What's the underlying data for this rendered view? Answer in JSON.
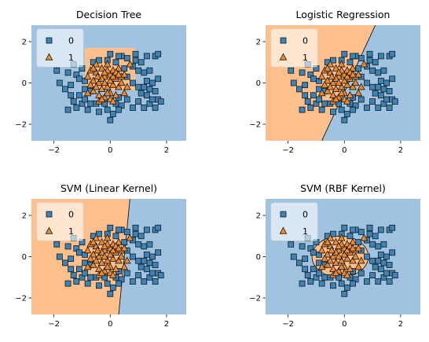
{
  "colors": {
    "class0_region": "#9fc3e0",
    "class1_region": "#fdc08c",
    "class0_marker": "#3a84b8",
    "class1_marker": "#f08a2a",
    "marker_edge": "#1a1a1a",
    "legend_bg": "#ffffff"
  },
  "chart_data": [
    {
      "type": "scatter",
      "title": "Decision Tree",
      "xlim": [
        -2.8,
        2.7
      ],
      "ylim": [
        -2.8,
        2.8
      ],
      "xticks": [
        -2,
        0,
        2
      ],
      "yticks": [
        -2,
        0,
        2
      ],
      "xtick_labels": [
        "−2",
        "0",
        "2"
      ],
      "ytick_labels": [
        "−2",
        "0",
        "2"
      ],
      "legend": {
        "placement": "upper-left",
        "entries": [
          "0",
          "1"
        ]
      },
      "boundary": {
        "kind": "box",
        "x": [
          -0.9,
          0.9
        ],
        "y": [
          -0.35,
          1.7
        ]
      }
    },
    {
      "type": "scatter",
      "title": "Logistic Regression",
      "xlim": [
        -2.8,
        2.7
      ],
      "ylim": [
        -2.8,
        2.8
      ],
      "xticks": [
        -2,
        0,
        2
      ],
      "yticks": [
        -2,
        0,
        2
      ],
      "xtick_labels": [
        "−2",
        "0",
        "2"
      ],
      "ytick_labels": [
        "−2",
        "0",
        "2"
      ],
      "legend": {
        "placement": "upper-left",
        "entries": [
          "0",
          "1"
        ]
      },
      "boundary": {
        "kind": "line",
        "p1": [
          -0.8,
          -2.8
        ],
        "p2": [
          1.1,
          2.8
        ]
      }
    },
    {
      "type": "scatter",
      "title": "SVM (Linear Kernel)",
      "xlim": [
        -2.8,
        2.7
      ],
      "ylim": [
        -2.8,
        2.8
      ],
      "xticks": [
        -2,
        0,
        2
      ],
      "yticks": [
        -2,
        0,
        2
      ],
      "xtick_labels": [
        "−2",
        "0",
        "2"
      ],
      "ytick_labels": [
        "−2",
        "0",
        "2"
      ],
      "legend": {
        "placement": "upper-left",
        "entries": [
          "0",
          "1"
        ]
      },
      "boundary": {
        "kind": "line",
        "p1": [
          0.3,
          -2.8
        ],
        "p2": [
          0.7,
          2.8
        ]
      }
    },
    {
      "type": "scatter",
      "title": "SVM (RBF Kernel)",
      "xlim": [
        -2.8,
        2.7
      ],
      "ylim": [
        -2.8,
        2.8
      ],
      "xticks": [
        -2,
        0,
        2
      ],
      "yticks": [
        -2,
        0,
        2
      ],
      "xtick_labels": [
        "−2",
        "0",
        "2"
      ],
      "ytick_labels": [
        "−2",
        "0",
        "2"
      ],
      "legend": {
        "placement": "upper-left",
        "entries": [
          "0",
          "1"
        ]
      },
      "boundary": {
        "kind": "ellipse",
        "cx": -0.15,
        "cy": 0.0,
        "rx": 1.0,
        "ry": 1.0
      }
    }
  ],
  "points": {
    "class0": [
      [
        -1.9,
        0.6
      ],
      [
        -1.8,
        0.0
      ],
      [
        -1.6,
        -0.3
      ],
      [
        -1.5,
        0.5
      ],
      [
        -1.4,
        -0.1
      ],
      [
        -1.3,
        0.9
      ],
      [
        -1.2,
        0.4
      ],
      [
        -1.1,
        0.2
      ],
      [
        -1.0,
        0.7
      ],
      [
        -1.4,
        -0.6
      ],
      [
        -1.5,
        -1.3
      ],
      [
        -1.2,
        -1.2
      ],
      [
        -1.1,
        -0.6
      ],
      [
        -1.0,
        -1.0
      ],
      [
        -0.8,
        -1.3
      ],
      [
        -1.3,
        -0.9
      ],
      [
        -0.9,
        -0.8
      ],
      [
        -0.7,
        -1.0
      ],
      [
        -0.5,
        -1.0
      ],
      [
        -0.4,
        -1.4
      ],
      [
        -0.2,
        -1.0
      ],
      [
        -0.1,
        -1.3
      ],
      [
        0.1,
        -1.5
      ],
      [
        0.2,
        -1.0
      ],
      [
        0.4,
        -1.1
      ],
      [
        0.3,
        -0.7
      ],
      [
        0.6,
        -0.8
      ],
      [
        0.8,
        -1.2
      ],
      [
        1.0,
        -0.9
      ],
      [
        1.2,
        -1.2
      ],
      [
        1.4,
        -1.0
      ],
      [
        1.5,
        -0.8
      ],
      [
        1.7,
        -0.8
      ],
      [
        1.6,
        -1.2
      ],
      [
        1.3,
        -0.6
      ],
      [
        1.1,
        -0.5
      ],
      [
        1.4,
        -0.3
      ],
      [
        1.6,
        -0.4
      ],
      [
        1.3,
        0.1
      ],
      [
        1.5,
        0.0
      ],
      [
        1.7,
        0.2
      ],
      [
        1.2,
        0.5
      ],
      [
        1.0,
        0.6
      ],
      [
        1.4,
        0.6
      ],
      [
        0.8,
        0.8
      ],
      [
        1.1,
        1.0
      ],
      [
        0.9,
        1.1
      ],
      [
        0.6,
        1.2
      ],
      [
        0.4,
        1.3
      ],
      [
        0.2,
        1.0
      ],
      [
        0.3,
        1.3
      ],
      [
        0.0,
        1.4
      ],
      [
        -0.1,
        1.1
      ],
      [
        0.9,
        1.4
      ],
      [
        1.3,
        1.3
      ],
      [
        1.6,
        1.3
      ],
      [
        -0.4,
        1.1
      ],
      [
        0.6,
        0.3
      ],
      [
        0.8,
        0.0
      ],
      [
        -0.9,
        -0.3
      ],
      [
        0.0,
        -1.8
      ],
      [
        -0.9,
        0.1
      ],
      [
        1.7,
        1.4
      ],
      [
        0.5,
        0.7
      ],
      [
        1.0,
        -0.2
      ],
      [
        -0.7,
        -0.4
      ],
      [
        1.2,
        -0.2
      ],
      [
        0.3,
        -1.3
      ],
      [
        -0.6,
        1.0
      ],
      [
        1.8,
        -0.9
      ]
    ],
    "class1": [
      [
        -0.8,
        0.3
      ],
      [
        -0.7,
        0.6
      ],
      [
        -0.6,
        0.1
      ],
      [
        -0.5,
        0.5
      ],
      [
        -0.4,
        0.0
      ],
      [
        -0.3,
        0.7
      ],
      [
        -0.2,
        0.3
      ],
      [
        -0.1,
        0.9
      ],
      [
        0.0,
        0.4
      ],
      [
        0.1,
        0.6
      ],
      [
        0.2,
        0.2
      ],
      [
        0.3,
        0.7
      ],
      [
        0.4,
        0.3
      ],
      [
        -0.6,
        -0.4
      ],
      [
        -0.5,
        -0.2
      ],
      [
        -0.4,
        -0.6
      ],
      [
        -0.3,
        -0.3
      ],
      [
        -0.2,
        -0.7
      ],
      [
        -0.1,
        -0.2
      ],
      [
        0.0,
        -0.5
      ],
      [
        0.1,
        -0.1
      ],
      [
        0.2,
        -0.6
      ],
      [
        0.3,
        -0.2
      ],
      [
        0.4,
        0.0
      ],
      [
        -0.7,
        -0.1
      ],
      [
        -0.5,
        0.9
      ],
      [
        -0.3,
        0.2
      ],
      [
        -0.2,
        0.0
      ],
      [
        0.0,
        0.1
      ],
      [
        0.1,
        0.3
      ],
      [
        -0.4,
        -0.9
      ],
      [
        0.0,
        -0.8
      ],
      [
        0.2,
        0.5
      ],
      [
        -0.1,
        0.6
      ],
      [
        -0.6,
        0.7
      ],
      [
        0.5,
        0.4
      ],
      [
        0.6,
        -0.2
      ],
      [
        0.7,
        0.9
      ],
      [
        -0.8,
        -0.5
      ],
      [
        -0.3,
        -0.8
      ],
      [
        -0.2,
        0.5
      ],
      [
        0.1,
        -0.9
      ],
      [
        0.5,
        -0.5
      ],
      [
        -0.1,
        -0.5
      ],
      [
        0.3,
        0.4
      ],
      [
        -0.45,
        0.3
      ]
    ]
  }
}
